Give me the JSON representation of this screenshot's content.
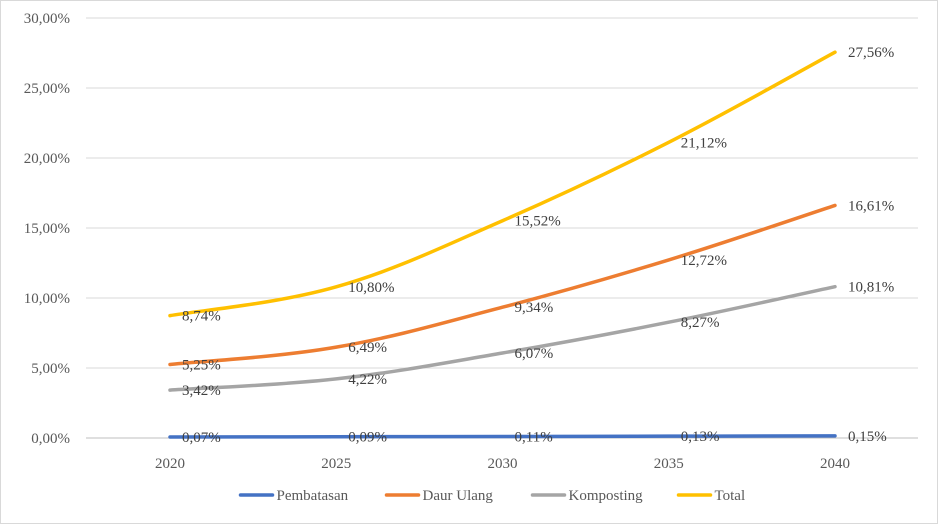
{
  "chart_data": {
    "type": "line",
    "title": "",
    "xlabel": "",
    "ylabel": "",
    "categories": [
      "2020",
      "2025",
      "2030",
      "2035",
      "2040"
    ],
    "y_ticks": [
      "0,00%",
      "5,00%",
      "10,00%",
      "15,00%",
      "20,00%",
      "25,00%",
      "30,00%"
    ],
    "ylim": [
      0,
      30
    ],
    "grid": true,
    "legend_position": "bottom",
    "series": [
      {
        "name": "Pembatasan",
        "color": "#4472c4",
        "values": [
          0.07,
          0.09,
          0.11,
          0.13,
          0.15
        ],
        "labels": [
          "0,07%",
          "0,09%",
          "0,11%",
          "0,13%",
          "0,15%"
        ]
      },
      {
        "name": "Daur Ulang",
        "color": "#ed7d31",
        "values": [
          5.25,
          6.49,
          9.34,
          12.72,
          16.61
        ],
        "labels": [
          "5,25%",
          "6,49%",
          "9,34%",
          "12,72%",
          "16,61%"
        ]
      },
      {
        "name": "Komposting",
        "color": "#a5a5a5",
        "values": [
          3.42,
          4.22,
          6.07,
          8.27,
          10.81
        ],
        "labels": [
          "3,42%",
          "4,22%",
          "6,07%",
          "8,27%",
          "10,81%"
        ]
      },
      {
        "name": "Total",
        "color": "#ffc000",
        "values": [
          8.74,
          10.8,
          15.52,
          21.12,
          27.56
        ],
        "labels": [
          "8,74%",
          "10,80%",
          "15,52%",
          "21,12%",
          "27,56%"
        ]
      }
    ]
  }
}
